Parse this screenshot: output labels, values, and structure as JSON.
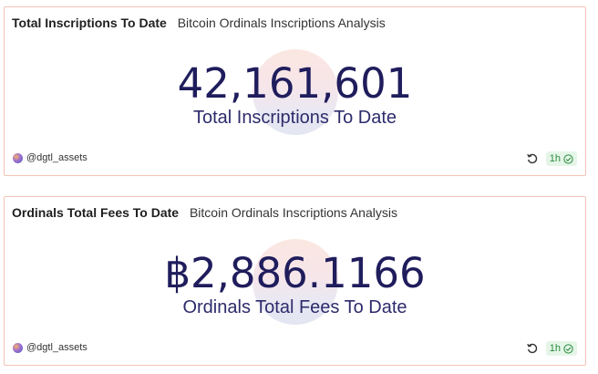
{
  "cards": [
    {
      "title": "Total Inscriptions To Date",
      "subtitle": "Bitcoin Ordinals Inscriptions Analysis",
      "value": "42,161,601",
      "label": "Total Inscriptions To Date",
      "author": "@dgtl_assets",
      "freshness": "1h"
    },
    {
      "title": "Ordinals Total Fees To Date",
      "subtitle": "Bitcoin Ordinals Inscriptions Analysis",
      "value": "฿2,886.1166",
      "label": "Ordinals Total Fees To Date",
      "author": "@dgtl_assets",
      "freshness": "1h"
    }
  ],
  "colors": {
    "border": "#f2c4b8",
    "value": "#1f1d5c",
    "badge_bg": "#e5f6e8",
    "badge_fg": "#2a8a3e"
  },
  "icons": [
    "refresh-icon",
    "check-circle-icon",
    "avatar"
  ]
}
